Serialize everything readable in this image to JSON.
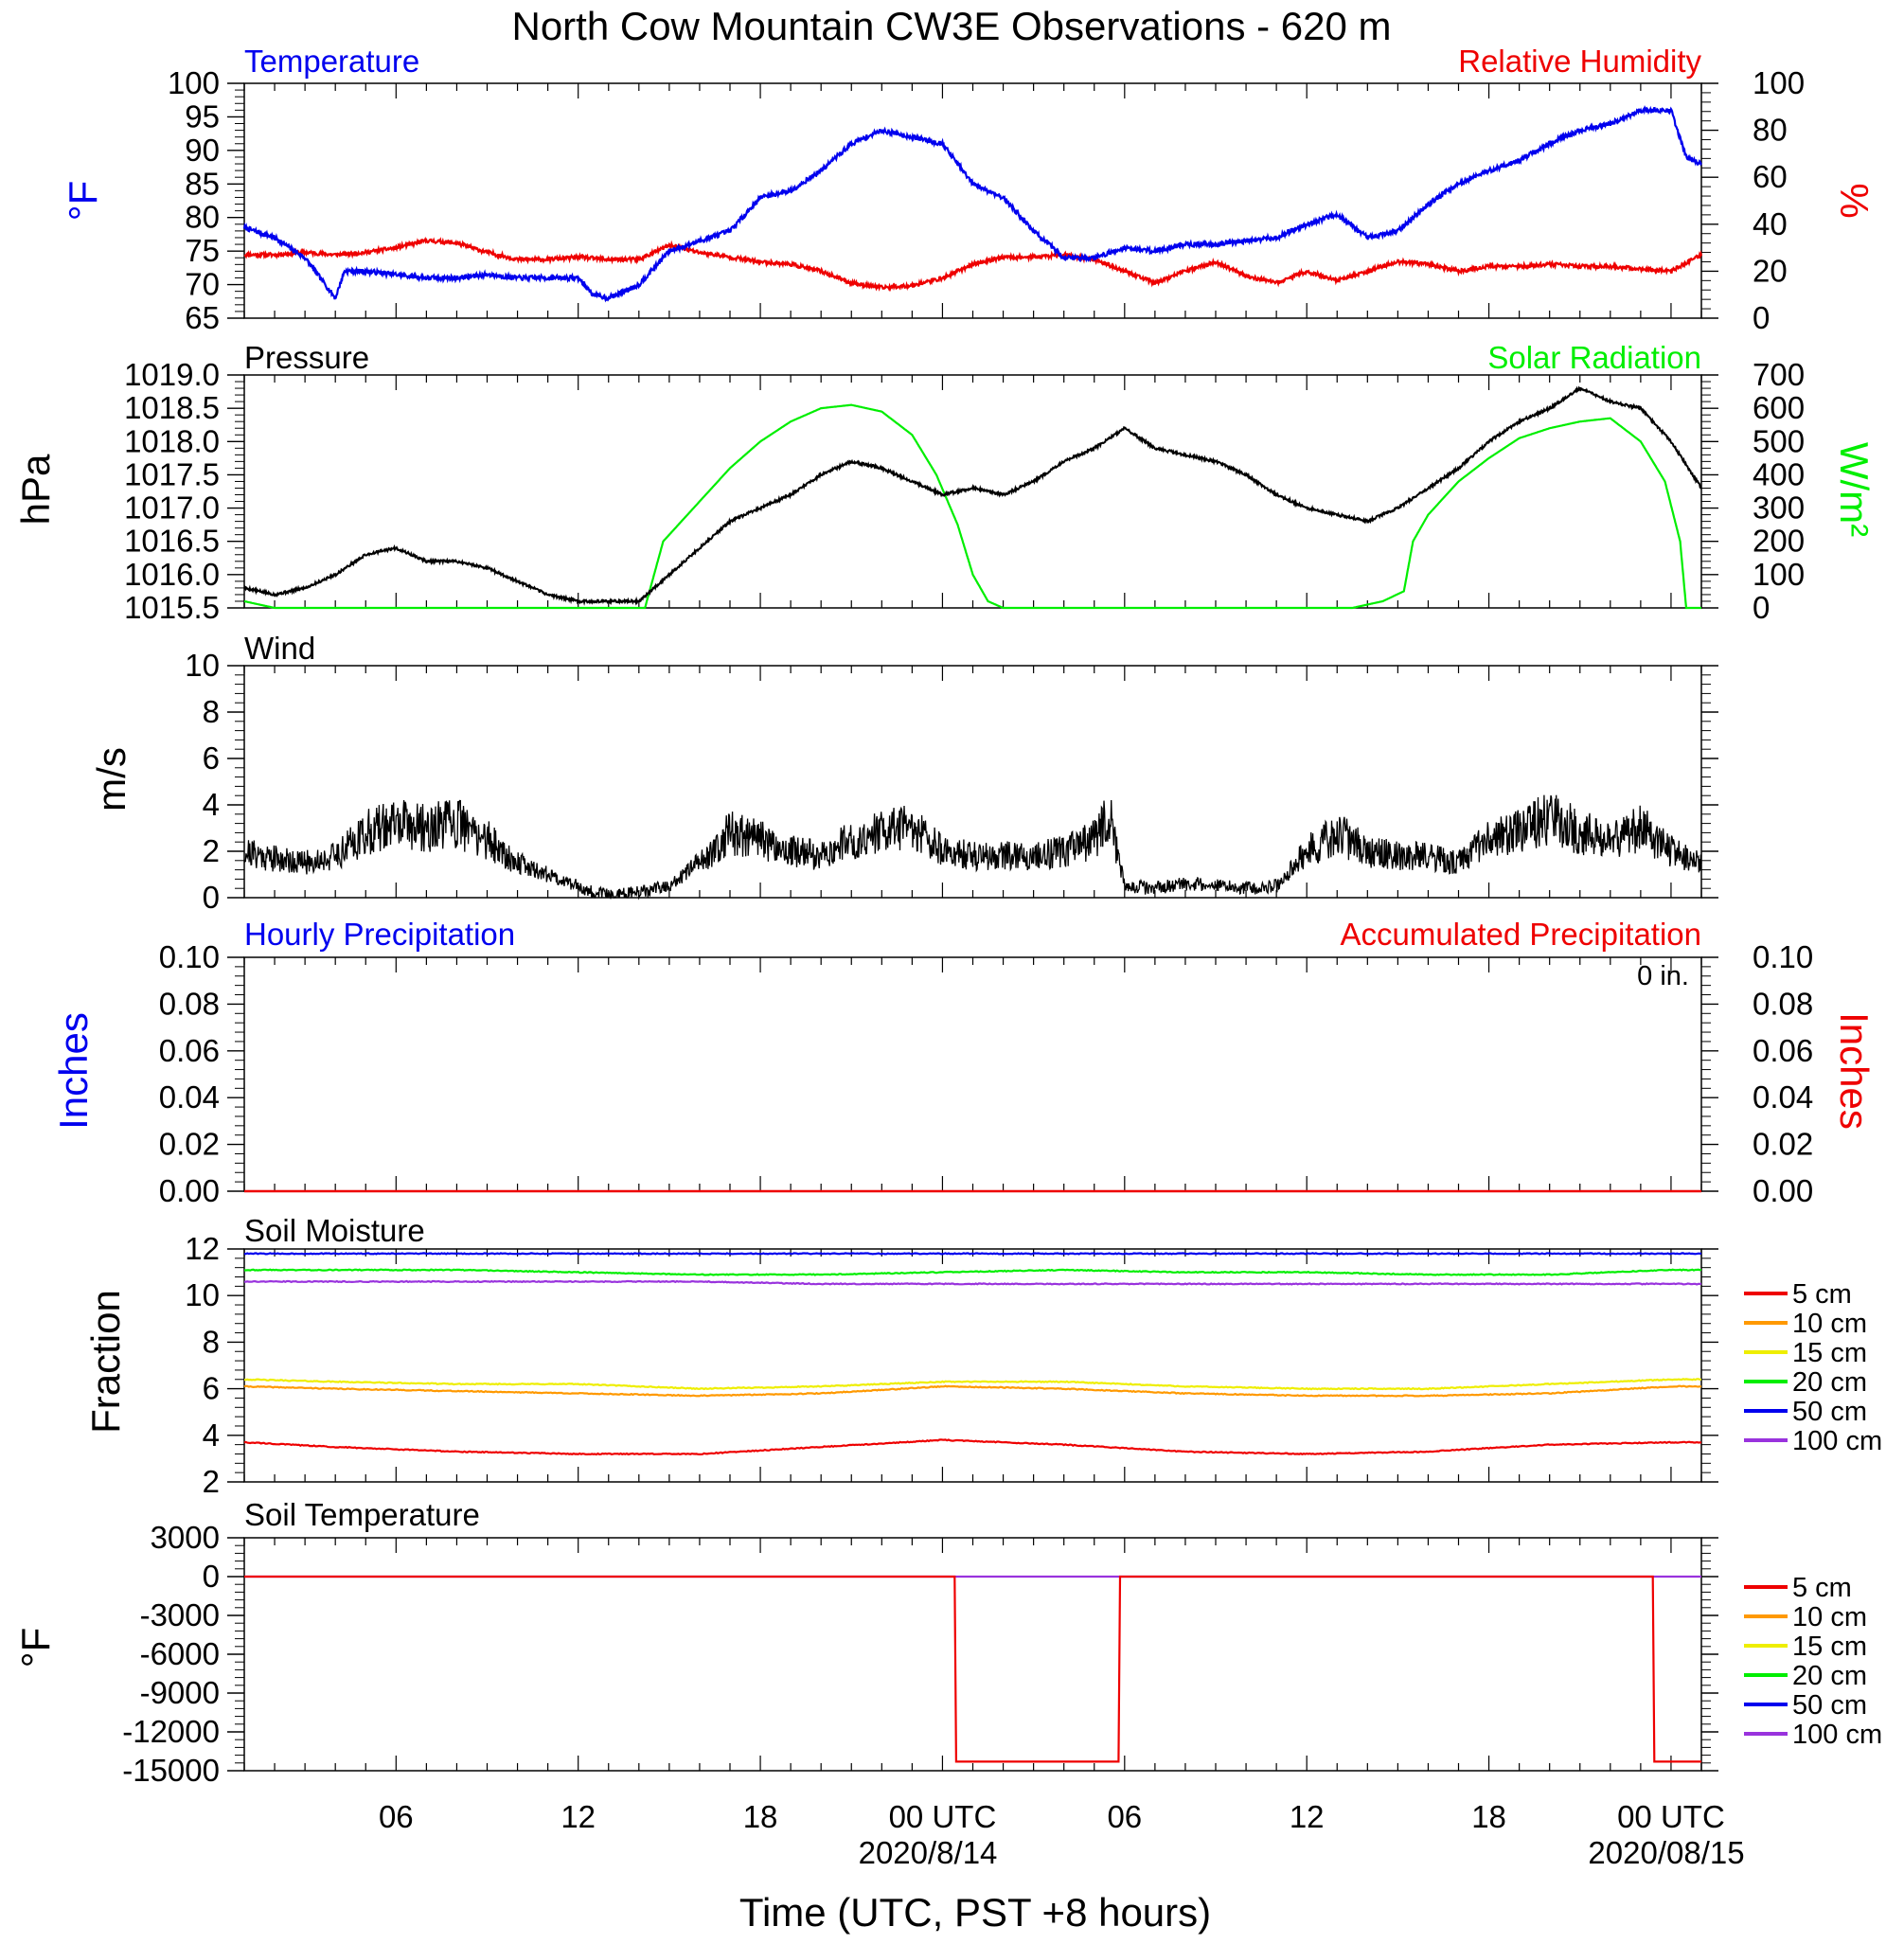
{
  "title": "North Cow Mountain CW3E Observations - 620 m",
  "x_axis": {
    "label": "Time (UTC, PST +8 hours)",
    "ticks": [
      "06",
      "12",
      "18",
      "00 UTC",
      "06",
      "12",
      "18",
      "00 UTC"
    ],
    "tick_hours": [
      6,
      12,
      18,
      24,
      30,
      36,
      42,
      48
    ],
    "dates": [
      "2020/8/14",
      "2020/08/15"
    ],
    "range_hours": [
      1,
      49
    ]
  },
  "colors": {
    "blue": "#0000ee",
    "red": "#ee0000",
    "green": "#00ee00",
    "black": "#000000",
    "orange": "#ff9900",
    "yellow": "#eeee00",
    "purple": "#9933dd"
  },
  "panels": {
    "temperature": {
      "left_title": "Temperature",
      "right_title": "Relative Humidity",
      "left_unit": "°F",
      "right_unit": "%",
      "left_ticks": [
        "65",
        "70",
        "75",
        "80",
        "85",
        "90",
        "95",
        "100"
      ],
      "right_ticks": [
        "0",
        "20",
        "40",
        "60",
        "80",
        "100"
      ]
    },
    "pressure": {
      "left_title": "Pressure",
      "right_title": "Solar Radiation",
      "left_unit": "hPa",
      "right_unit": "W/m²",
      "left_ticks": [
        "1015.5",
        "1016.0",
        "1016.5",
        "1017.0",
        "1017.5",
        "1018.0",
        "1018.5",
        "1019.0"
      ],
      "right_ticks": [
        "0",
        "100",
        "200",
        "300",
        "400",
        "500",
        "600",
        "700"
      ]
    },
    "wind": {
      "title": "Wind",
      "unit": "m/s",
      "ticks": [
        "0",
        "2",
        "4",
        "6",
        "8",
        "10"
      ]
    },
    "precip": {
      "left_title": "Hourly Precipitation",
      "right_title": "Accumulated Precipitation",
      "accum_text": "0 in.",
      "left_unit": "Inches",
      "right_unit": "Inches",
      "left_ticks": [
        "0.00",
        "0.02",
        "0.04",
        "0.06",
        "0.08",
        "0.10"
      ],
      "right_ticks": [
        "0.00",
        "0.02",
        "0.04",
        "0.06",
        "0.08",
        "0.10"
      ]
    },
    "soil_moisture": {
      "title": "Soil Moisture",
      "unit": "Fraction",
      "ticks": [
        "2",
        "4",
        "6",
        "8",
        "10",
        "12"
      ]
    },
    "soil_temperature": {
      "title": "Soil Temperature",
      "unit": "°F",
      "ticks": [
        "-15000",
        "-12000",
        "-9000",
        "-6000",
        "-3000",
        "0",
        "3000"
      ]
    }
  },
  "legend": {
    "labels": [
      "5 cm",
      "10 cm",
      "15 cm",
      "20 cm",
      "50 cm",
      "100 cm"
    ],
    "colors": [
      "#ee0000",
      "#ff9900",
      "#eeee00",
      "#00ee00",
      "#0000ee",
      "#9933dd"
    ]
  },
  "chart_data": [
    {
      "type": "line",
      "title": "Temperature",
      "ylabel": "°F",
      "ylim": [
        65,
        100
      ],
      "x": [
        1,
        2,
        3,
        4,
        4.3,
        5,
        6,
        7,
        8,
        9,
        10,
        11,
        12,
        12.5,
        13,
        14,
        15,
        16,
        17,
        18,
        19,
        20,
        21,
        22,
        23,
        24,
        25,
        26,
        27,
        28,
        29,
        30,
        31,
        32,
        33,
        34,
        35,
        36,
        37,
        38,
        39,
        40,
        41,
        42,
        43,
        44,
        45,
        46,
        47,
        48,
        48.5,
        49
      ],
      "series": [
        {
          "values": [
            78.5,
            77,
            74,
            68,
            72,
            72,
            71.5,
            71,
            71,
            71.5,
            71,
            71,
            71,
            68.5,
            68,
            70,
            75,
            76.5,
            78,
            83,
            84,
            87,
            91,
            93,
            92,
            91,
            85,
            83,
            78,
            74,
            74,
            75.5,
            75,
            76,
            76,
            76.5,
            77,
            79,
            80.5,
            77,
            78,
            82,
            85,
            87,
            88.5,
            91,
            93,
            94,
            96,
            96,
            89,
            88
          ]
        }
      ]
    },
    {
      "type": "line",
      "title": "Relative Humidity",
      "ylabel": "%",
      "ylim": [
        0,
        100
      ],
      "x": [
        1,
        2,
        3,
        4,
        5,
        6,
        7,
        8,
        9,
        10,
        11,
        12,
        13,
        14,
        15,
        16,
        17,
        18,
        19,
        20,
        21,
        22,
        23,
        24,
        25,
        26,
        27,
        28,
        29,
        30,
        31,
        32,
        33,
        34,
        35,
        36,
        37,
        38,
        39,
        40,
        41,
        42,
        43,
        44,
        45,
        46,
        47,
        48,
        49
      ],
      "series": [
        {
          "values": [
            27,
            27,
            28,
            27,
            28,
            30,
            33,
            32,
            28,
            25,
            25,
            26,
            25,
            25,
            31,
            28,
            26,
            24,
            23,
            20,
            15,
            13,
            14,
            17,
            23,
            26,
            26,
            27,
            25,
            20,
            15,
            20,
            24,
            18,
            15,
            20,
            16,
            20,
            24,
            23,
            20,
            22,
            22,
            23,
            22,
            22,
            21,
            20,
            27
          ]
        }
      ]
    },
    {
      "type": "line",
      "title": "Pressure",
      "ylabel": "hPa",
      "ylim": [
        1015.5,
        1019.0
      ],
      "x": [
        1,
        2,
        3,
        4,
        5,
        6,
        7,
        8,
        9,
        10,
        11,
        12,
        13,
        14,
        15,
        16,
        17,
        18,
        19,
        20,
        21,
        22,
        23,
        24,
        25,
        26,
        27,
        28,
        29,
        30,
        31,
        32,
        33,
        34,
        35,
        36,
        37,
        38,
        39,
        40,
        41,
        42,
        43,
        44,
        45,
        46,
        47,
        48,
        49
      ],
      "series": [
        {
          "values": [
            1015.8,
            1015.7,
            1015.8,
            1016.0,
            1016.3,
            1016.4,
            1016.2,
            1016.2,
            1016.1,
            1015.9,
            1015.7,
            1015.6,
            1015.6,
            1015.6,
            1016.0,
            1016.4,
            1016.8,
            1017.0,
            1017.2,
            1017.5,
            1017.7,
            1017.6,
            1017.4,
            1017.2,
            1017.3,
            1017.2,
            1017.4,
            1017.7,
            1017.9,
            1018.2,
            1017.9,
            1017.8,
            1017.7,
            1017.5,
            1017.2,
            1017.0,
            1016.9,
            1016.8,
            1017.0,
            1017.3,
            1017.6,
            1018.0,
            1018.3,
            1018.5,
            1018.8,
            1018.6,
            1018.5,
            1018.0,
            1017.3
          ]
        }
      ]
    },
    {
      "type": "line",
      "title": "Solar Radiation",
      "ylabel": "W/m²",
      "ylim": [
        0,
        700
      ],
      "x": [
        1,
        2,
        2.5,
        14.2,
        14.8,
        16,
        17,
        18,
        19,
        20,
        21,
        22,
        23,
        23.8,
        24.5,
        25,
        25.5,
        26,
        27,
        37.5,
        38.5,
        39.2,
        39.5,
        40,
        41,
        42,
        43,
        44,
        45,
        46,
        47,
        47.8,
        48.3,
        48.5,
        49
      ],
      "series": [
        {
          "values": [
            20,
            0,
            0,
            0,
            200,
            320,
            420,
            500,
            560,
            600,
            610,
            590,
            520,
            400,
            250,
            100,
            20,
            0,
            0,
            0,
            20,
            50,
            200,
            280,
            380,
            450,
            510,
            540,
            560,
            570,
            500,
            380,
            200,
            0,
            0
          ]
        }
      ]
    },
    {
      "type": "line",
      "title": "Wind",
      "ylabel": "m/s",
      "ylim": [
        0,
        10
      ],
      "x": [
        1,
        2,
        3,
        4,
        5,
        6,
        7,
        8,
        9,
        10,
        11,
        12,
        12.5,
        13,
        14,
        15,
        16,
        17,
        18,
        19,
        20,
        21,
        22,
        23,
        24,
        25,
        26,
        27,
        28,
        29,
        29.5,
        30,
        31,
        32,
        33,
        34,
        35,
        36,
        37,
        38,
        39,
        40,
        41,
        42,
        43,
        44,
        45,
        46,
        47,
        48,
        49
      ],
      "series": [
        {
          "values": [
            2.0,
            1.7,
            1.5,
            1.8,
            2.8,
            3.2,
            3.0,
            3.2,
            2.5,
            1.5,
            1.0,
            0.5,
            0.2,
            0.1,
            0.2,
            0.5,
            1.5,
            2.8,
            2.5,
            2.0,
            1.8,
            2.5,
            2.8,
            3.0,
            2.0,
            1.8,
            1.8,
            1.8,
            2.0,
            2.5,
            3.5,
            0.5,
            0.4,
            0.6,
            0.5,
            0.4,
            0.5,
            2.0,
            2.8,
            2.0,
            1.8,
            1.8,
            1.5,
            2.5,
            3.0,
            3.5,
            2.8,
            2.5,
            3.0,
            2.0,
            1.5
          ]
        }
      ]
    },
    {
      "type": "line",
      "title": "Hourly Precipitation",
      "ylabel": "Inches",
      "ylim": [
        0,
        0.1
      ],
      "x": [
        1,
        49
      ],
      "series": [
        {
          "values": [
            0,
            0
          ]
        }
      ]
    },
    {
      "type": "line",
      "title": "Soil Moisture",
      "ylabel": "Fraction",
      "ylim": [
        2,
        12
      ],
      "x": [
        1,
        4,
        8,
        12,
        16,
        20,
        24,
        28,
        32,
        36,
        40,
        44,
        48,
        49
      ],
      "series": [
        {
          "name": "5 cm",
          "values": [
            3.7,
            3.5,
            3.3,
            3.2,
            3.2,
            3.5,
            3.8,
            3.6,
            3.3,
            3.2,
            3.3,
            3.6,
            3.7,
            3.7
          ]
        },
        {
          "name": "10 cm",
          "values": [
            6.1,
            6.0,
            5.9,
            5.8,
            5.7,
            5.8,
            6.1,
            6.0,
            5.8,
            5.7,
            5.7,
            5.8,
            6.1,
            6.1
          ]
        },
        {
          "name": "15 cm",
          "values": [
            6.4,
            6.3,
            6.2,
            6.2,
            6.0,
            6.1,
            6.3,
            6.3,
            6.1,
            6.0,
            6.0,
            6.2,
            6.4,
            6.4
          ]
        },
        {
          "name": "20 cm",
          "values": [
            11.1,
            11.1,
            11.1,
            11.0,
            10.9,
            10.9,
            11.0,
            11.1,
            11.0,
            11.0,
            10.9,
            10.9,
            11.1,
            11.1
          ]
        },
        {
          "name": "50 cm",
          "values": [
            11.8,
            11.8,
            11.8,
            11.8,
            11.8,
            11.8,
            11.8,
            11.8,
            11.8,
            11.8,
            11.8,
            11.8,
            11.8,
            11.8
          ]
        },
        {
          "name": "100 cm",
          "values": [
            10.6,
            10.6,
            10.6,
            10.6,
            10.6,
            10.5,
            10.5,
            10.5,
            10.5,
            10.5,
            10.5,
            10.5,
            10.5,
            10.5
          ]
        }
      ]
    },
    {
      "type": "line",
      "title": "Soil Temperature",
      "ylabel": "°F",
      "ylim": [
        -15000,
        3000
      ],
      "x": [
        1,
        24.4,
        24.45,
        29.8,
        29.85,
        47.4,
        47.45,
        49
      ],
      "series": [
        {
          "name": "5 cm",
          "values": [
            0,
            0,
            -14300,
            -14300,
            0,
            0,
            -14300,
            -14300
          ]
        },
        {
          "name": "100 cm",
          "values": [
            0,
            0,
            0,
            0,
            0,
            0,
            0,
            0
          ]
        }
      ]
    }
  ]
}
